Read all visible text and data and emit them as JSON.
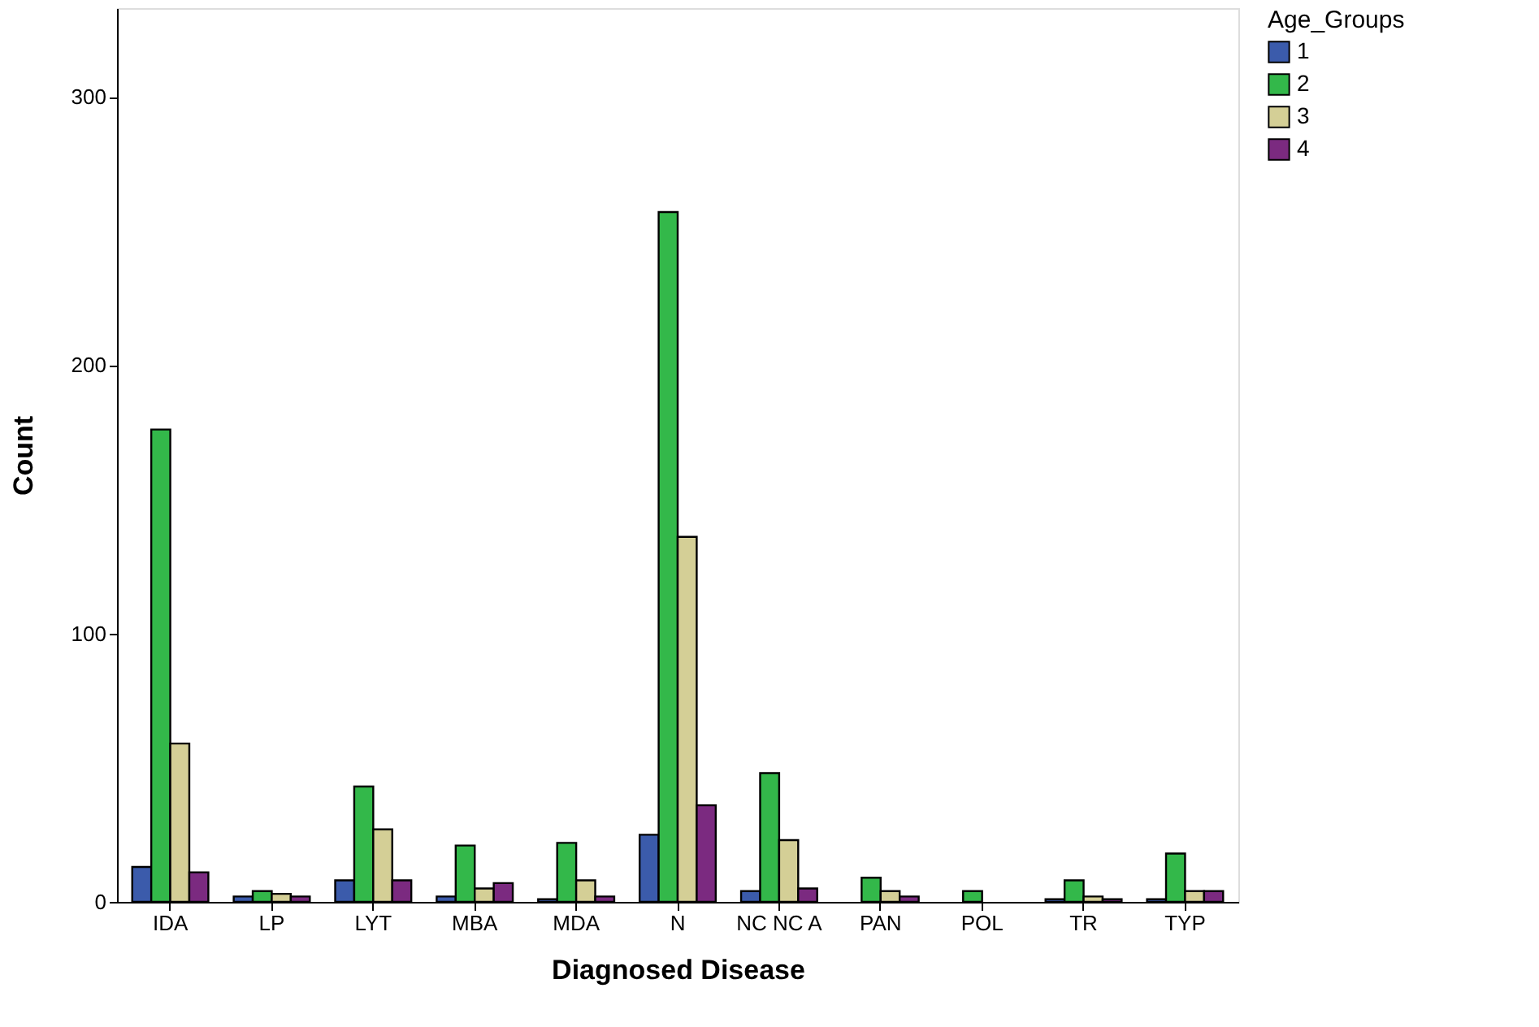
{
  "chart_data": {
    "type": "bar",
    "xlabel": "Diagnosed Disease",
    "ylabel": "Count",
    "legend_title": "Age_Groups",
    "categories": [
      "IDA",
      "LP",
      "LYT",
      "MBA",
      "MDA",
      "N",
      "NC NC A",
      "PAN",
      "POL",
      "TR",
      "TYP"
    ],
    "series": [
      {
        "name": "1",
        "color": "#3b5bab",
        "values": [
          13,
          2,
          8,
          2,
          1,
          25,
          4,
          null,
          null,
          1,
          1
        ]
      },
      {
        "name": "2",
        "color": "#33b84a",
        "values": [
          176,
          4,
          43,
          21,
          22,
          257,
          48,
          9,
          4,
          8,
          18
        ]
      },
      {
        "name": "3",
        "color": "#d4cf96",
        "values": [
          59,
          3,
          27,
          5,
          8,
          136,
          23,
          4,
          null,
          2,
          4
        ]
      },
      {
        "name": "4",
        "color": "#7b2a80",
        "values": [
          11,
          2,
          8,
          7,
          2,
          36,
          5,
          2,
          null,
          1,
          4
        ]
      }
    ],
    "ylim": [
      0,
      333
    ],
    "yticks": [
      0,
      100,
      200,
      300
    ],
    "grid": false,
    "legend": "top right"
  }
}
